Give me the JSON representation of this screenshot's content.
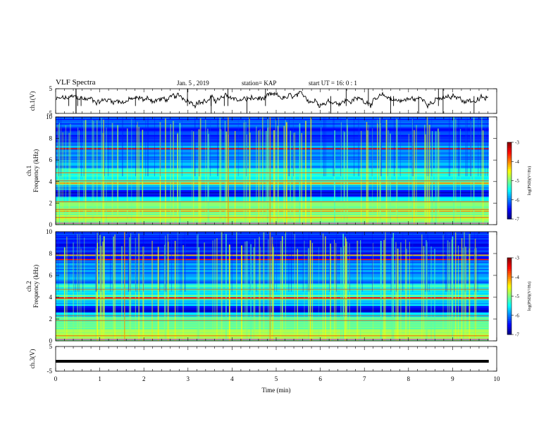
{
  "header": {
    "title": "VLF Spectra",
    "date": "Jan. 5 , 2019",
    "station": "station= KAP",
    "start_ut": "start UT = 16: 0 : 1"
  },
  "chart_data": [
    {
      "type": "line",
      "panel": "ch1-waveform",
      "ylabel": "ch.1(V)",
      "ylim": [
        -5,
        5
      ],
      "yticks": [
        "5",
        "-5"
      ],
      "xlim": [
        0,
        10
      ],
      "data_extent_min": 9.82,
      "series": [
        {
          "description": "noisy waveform around 0 V",
          "color": "#000000"
        }
      ]
    },
    {
      "type": "heatmap",
      "panel": "ch1-spectrogram",
      "ylabel": "ch.1\nFrequency (kHz)",
      "ylim": [
        0,
        10
      ],
      "yticks": [
        "0",
        "2",
        "4",
        "6",
        "8",
        "10"
      ],
      "xlim": [
        0,
        10
      ],
      "data_extent_min": 9.82,
      "colorbar": {
        "label": "log(PSD)(V²/Hz)",
        "range": [
          -7,
          -3
        ],
        "ticks": [
          "-3",
          "-4",
          "-5",
          "-6",
          "-7"
        ]
      }
    },
    {
      "type": "heatmap",
      "panel": "ch2-spectrogram",
      "ylabel": "ch.2\nFrequency (kHz)",
      "ylim": [
        0,
        10
      ],
      "yticks": [
        "0",
        "2",
        "4",
        "6",
        "8",
        "10"
      ],
      "xlim": [
        0,
        10
      ],
      "data_extent_min": 9.82,
      "colorbar": {
        "label": "log(PSD)(V²/Hz)",
        "range": [
          -7,
          -3
        ],
        "ticks": [
          "-3",
          "-4",
          "-5",
          "-6",
          "-7"
        ]
      }
    },
    {
      "type": "line",
      "panel": "ch3-waveform",
      "ylabel": "ch.3(V)",
      "ylim": [
        -5,
        5
      ],
      "yticks": [
        "5",
        "-5"
      ],
      "xlim": [
        0,
        10
      ],
      "data_extent_min": 9.82,
      "series": [
        {
          "description": "flat line near -1 V",
          "level": -1.0,
          "color": "#000000"
        }
      ]
    }
  ],
  "xaxis": {
    "label": "Time (min)",
    "ticks": [
      "0",
      "1",
      "2",
      "3",
      "4",
      "5",
      "6",
      "7",
      "8",
      "9",
      "10"
    ]
  }
}
